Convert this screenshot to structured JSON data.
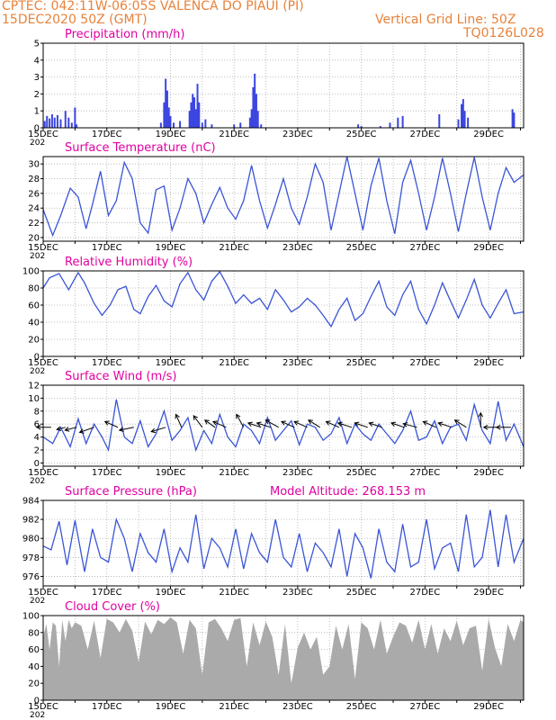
{
  "header": {
    "line1": "CPTEC:   042:11W-06:05S   VALENCA DO PIAUI (PI)",
    "line2_left": "15DEC2020 50Z (GMT)",
    "line2_right": "Vertical Grid Line: 50Z",
    "line3_right": "TQ0126L028"
  },
  "colors": {
    "title": "#e000a0",
    "header": "#e8823a",
    "line": "#3b55d6",
    "bar": "#3b45e0",
    "cloud": "#aaaaaa",
    "grid": "#b0b0b0"
  },
  "x_ticks": [
    "15DEC",
    "17DEC",
    "19DEC",
    "21DEC",
    "23DEC",
    "25DEC",
    "27DEC",
    "29DEC"
  ],
  "year_stub": "202",
  "chart_data": [
    {
      "type": "bar",
      "title": "Precipitation (mm/h)",
      "x_range": [
        0,
        15.1
      ],
      "ylim": [
        0,
        5
      ],
      "yticks": [
        "0",
        "1",
        "2",
        "3",
        "4",
        "5"
      ],
      "bars": [
        [
          0.05,
          0.4
        ],
        [
          0.12,
          0.7
        ],
        [
          0.2,
          0.55
        ],
        [
          0.28,
          0.8
        ],
        [
          0.36,
          0.6
        ],
        [
          0.45,
          0.75
        ],
        [
          0.55,
          0.5
        ],
        [
          0.7,
          1.0
        ],
        [
          0.8,
          0.6
        ],
        [
          0.9,
          0.3
        ],
        [
          1.0,
          1.2
        ],
        [
          1.05,
          0.2
        ],
        [
          3.7,
          0.3
        ],
        [
          3.8,
          1.5
        ],
        [
          3.85,
          2.9
        ],
        [
          3.9,
          2.2
        ],
        [
          3.95,
          1.2
        ],
        [
          4.0,
          0.7
        ],
        [
          4.1,
          0.3
        ],
        [
          4.3,
          0.4
        ],
        [
          4.6,
          1.0
        ],
        [
          4.65,
          1.5
        ],
        [
          4.7,
          2.0
        ],
        [
          4.75,
          1.8
        ],
        [
          4.8,
          1.1
        ],
        [
          4.85,
          2.6
        ],
        [
          4.9,
          1.5
        ],
        [
          5.0,
          0.3
        ],
        [
          5.1,
          0.5
        ],
        [
          5.3,
          0.2
        ],
        [
          6.0,
          0.2
        ],
        [
          6.2,
          0.3
        ],
        [
          6.5,
          0.6
        ],
        [
          6.55,
          1.1
        ],
        [
          6.6,
          2.4
        ],
        [
          6.65,
          3.2
        ],
        [
          6.7,
          2.0
        ],
        [
          6.75,
          1.0
        ],
        [
          6.85,
          0.2
        ],
        [
          9.9,
          0.2
        ],
        [
          10.0,
          0.1
        ],
        [
          10.6,
          0.1
        ],
        [
          10.9,
          0.3
        ],
        [
          11.15,
          0.6
        ],
        [
          11.3,
          0.7
        ],
        [
          12.45,
          0.8
        ],
        [
          13.05,
          0.5
        ],
        [
          13.15,
          1.4
        ],
        [
          13.2,
          1.7
        ],
        [
          13.25,
          1.0
        ],
        [
          13.35,
          0.6
        ],
        [
          14.75,
          1.1
        ],
        [
          14.8,
          0.9
        ]
      ]
    },
    {
      "type": "line",
      "title": "Surface Temperature (nC)",
      "x_range": [
        0,
        15.1
      ],
      "ylim": [
        19.5,
        31
      ],
      "yticks": [
        "20",
        "22",
        "24",
        "26",
        "28",
        "30"
      ],
      "x": [
        0,
        0.3,
        0.55,
        0.85,
        1.1,
        1.35,
        1.55,
        1.8,
        2.05,
        2.3,
        2.55,
        2.8,
        3.05,
        3.3,
        3.55,
        3.8,
        4.05,
        4.3,
        4.55,
        4.8,
        5.05,
        5.3,
        5.55,
        5.8,
        6.05,
        6.3,
        6.55,
        6.8,
        7.05,
        7.3,
        7.55,
        7.8,
        8.05,
        8.3,
        8.55,
        8.8,
        9.05,
        9.3,
        9.55,
        9.8,
        10.05,
        10.3,
        10.55,
        10.8,
        11.05,
        11.3,
        11.55,
        11.8,
        12.05,
        12.3,
        12.55,
        12.8,
        13.05,
        13.3,
        13.55,
        13.8,
        14.05,
        14.3,
        14.55,
        14.8,
        15.1
      ],
      "y": [
        23.8,
        20.3,
        23.0,
        26.7,
        25.5,
        21.2,
        24.5,
        29.0,
        23.0,
        25.0,
        30.2,
        28.0,
        22.0,
        20.6,
        26.5,
        27.0,
        21.0,
        24.0,
        28.0,
        26.0,
        22.0,
        24.5,
        26.8,
        24.0,
        22.5,
        25.0,
        29.8,
        25.0,
        21.3,
        24.5,
        28.0,
        24.0,
        21.8,
        25.5,
        30.0,
        27.5,
        21.0,
        26.0,
        31.0,
        26.0,
        21.0,
        27.0,
        30.8,
        25.0,
        20.5,
        27.5,
        30.5,
        26.0,
        21.0,
        25.5,
        30.8,
        26.0,
        20.8,
        26.0,
        30.9,
        25.5,
        21.0,
        26.0,
        29.5,
        27.5,
        28.5
      ]
    },
    {
      "type": "line",
      "title": "Relative Humidity (%)",
      "x_range": [
        0,
        15.1
      ],
      "ylim": [
        0,
        100
      ],
      "yticks": [
        "0",
        "20",
        "40",
        "60",
        "80",
        "100"
      ],
      "x": [
        0,
        0.2,
        0.5,
        0.8,
        1.1,
        1.3,
        1.6,
        1.85,
        2.1,
        2.35,
        2.6,
        2.85,
        3.05,
        3.3,
        3.55,
        3.8,
        4.05,
        4.3,
        4.55,
        4.8,
        5.05,
        5.3,
        5.55,
        5.8,
        6.05,
        6.3,
        6.55,
        6.8,
        7.05,
        7.3,
        7.55,
        7.8,
        8.05,
        8.3,
        8.55,
        8.8,
        9.05,
        9.3,
        9.55,
        9.8,
        10.05,
        10.3,
        10.55,
        10.8,
        11.05,
        11.3,
        11.55,
        11.8,
        12.05,
        12.3,
        12.55,
        12.8,
        13.05,
        13.3,
        13.55,
        13.8,
        14.05,
        14.3,
        14.55,
        14.8,
        15.1
      ],
      "y": [
        80,
        92,
        97,
        78,
        98,
        86,
        62,
        48,
        60,
        78,
        82,
        55,
        50,
        70,
        83,
        65,
        58,
        85,
        98,
        78,
        66,
        88,
        99,
        82,
        62,
        72,
        62,
        68,
        55,
        78,
        66,
        52,
        58,
        68,
        60,
        48,
        35,
        55,
        68,
        42,
        50,
        70,
        88,
        58,
        48,
        72,
        88,
        55,
        38,
        60,
        86,
        65,
        45,
        66,
        90,
        60,
        45,
        62,
        78,
        50,
        52
      ]
    },
    {
      "type": "line",
      "title": "Surface Wind (m/s)",
      "x_range": [
        0,
        15.1
      ],
      "ylim": [
        -0.5,
        12
      ],
      "yticks": [
        "0",
        "2",
        "4",
        "6",
        "8",
        "10",
        "12"
      ],
      "x": [
        0,
        0.3,
        0.55,
        0.85,
        1.1,
        1.35,
        1.6,
        1.85,
        2.05,
        2.3,
        2.55,
        2.8,
        3.05,
        3.3,
        3.55,
        3.8,
        4.05,
        4.3,
        4.55,
        4.8,
        5.05,
        5.3,
        5.55,
        5.8,
        6.05,
        6.3,
        6.55,
        6.8,
        7.05,
        7.3,
        7.55,
        7.8,
        8.05,
        8.3,
        8.55,
        8.8,
        9.05,
        9.3,
        9.55,
        9.8,
        10.05,
        10.3,
        10.55,
        10.8,
        11.05,
        11.3,
        11.55,
        11.8,
        12.05,
        12.3,
        12.55,
        12.8,
        13.05,
        13.3,
        13.55,
        13.8,
        14.05,
        14.3,
        14.55,
        14.8,
        15.1
      ],
      "y": [
        4.0,
        3.0,
        5.5,
        2.5,
        6.8,
        3.0,
        6.0,
        4.0,
        2.0,
        9.8,
        4.0,
        3.0,
        6.5,
        2.5,
        4.5,
        8.0,
        3.5,
        5.0,
        7.0,
        2.0,
        5.0,
        3.0,
        7.5,
        4.0,
        2.5,
        6.0,
        5.0,
        3.0,
        7.0,
        3.5,
        5.0,
        6.5,
        2.8,
        6.0,
        5.5,
        3.5,
        4.5,
        7.0,
        3.0,
        6.0,
        4.5,
        3.5,
        6.0,
        4.5,
        3.0,
        5.0,
        8.0,
        3.5,
        4.0,
        6.5,
        3.0,
        5.5,
        6.0,
        3.5,
        9.0,
        5.0,
        3.0,
        9.5,
        3.5,
        6.0,
        2.5
      ],
      "arrows": [
        [
          0.25,
          -1,
          0
        ],
        [
          0.7,
          -0.6,
          0.15
        ],
        [
          1.05,
          -0.8,
          0.2
        ],
        [
          1.6,
          -1,
          0.35
        ],
        [
          2.35,
          -0.9,
          -0.4
        ],
        [
          2.85,
          -1,
          0.2
        ],
        [
          3.85,
          -1,
          0.3
        ],
        [
          4.35,
          -0.4,
          -0.9
        ],
        [
          5.0,
          -0.6,
          -0.8
        ],
        [
          5.4,
          -0.7,
          -0.5
        ],
        [
          5.75,
          -0.9,
          -0.4
        ],
        [
          6.3,
          -0.5,
          -0.9
        ],
        [
          6.85,
          -0.9,
          -0.3
        ],
        [
          7.15,
          -0.95,
          -0.3
        ],
        [
          7.4,
          -0.9,
          -0.5
        ],
        [
          7.9,
          -0.9,
          -0.4
        ],
        [
          8.3,
          -0.9,
          -0.4
        ],
        [
          8.7,
          -0.8,
          -0.5
        ],
        [
          9.3,
          -0.9,
          -0.4
        ],
        [
          9.7,
          -0.95,
          -0.3
        ],
        [
          10.2,
          -0.9,
          -0.3
        ],
        [
          10.65,
          -0.9,
          -0.3
        ],
        [
          11.35,
          -0.9,
          -0.3
        ],
        [
          11.75,
          -0.95,
          -0.25
        ],
        [
          12.35,
          -0.9,
          -0.4
        ],
        [
          12.85,
          -0.95,
          -0.3
        ],
        [
          13.3,
          -0.8,
          -0.5
        ],
        [
          13.75,
          0,
          -1
        ],
        [
          14.3,
          -1,
          0
        ],
        [
          14.7,
          -1,
          0
        ]
      ]
    },
    {
      "type": "line",
      "title": "Surface Pressure (hPa)",
      "annotation": "Model Altitude: 268.153 m",
      "x_range": [
        0,
        15.1
      ],
      "ylim": [
        975,
        984
      ],
      "yticks": [
        "976",
        "978",
        "980",
        "982",
        "984"
      ],
      "x": [
        0,
        0.25,
        0.5,
        0.75,
        1.0,
        1.3,
        1.55,
        1.8,
        2.05,
        2.3,
        2.55,
        2.8,
        3.05,
        3.3,
        3.55,
        3.8,
        4.05,
        4.3,
        4.55,
        4.8,
        5.05,
        5.3,
        5.55,
        5.8,
        6.05,
        6.3,
        6.55,
        6.8,
        7.05,
        7.3,
        7.55,
        7.8,
        8.05,
        8.3,
        8.55,
        8.8,
        9.05,
        9.3,
        9.55,
        9.8,
        10.05,
        10.3,
        10.55,
        10.8,
        11.05,
        11.3,
        11.55,
        11.8,
        12.05,
        12.3,
        12.55,
        12.8,
        13.05,
        13.3,
        13.55,
        13.8,
        14.05,
        14.3,
        14.55,
        14.8,
        15.1
      ],
      "y": [
        979.2,
        978.8,
        981.8,
        977.2,
        981.9,
        976.5,
        981.0,
        978.0,
        977.5,
        982.0,
        980.0,
        976.5,
        980.5,
        978.5,
        977.5,
        981.0,
        976.5,
        979.0,
        977.5,
        982.5,
        976.8,
        980.0,
        979.0,
        977.0,
        981.0,
        976.8,
        980.5,
        978.5,
        977.5,
        982.0,
        978.0,
        977.0,
        980.5,
        976.5,
        979.5,
        978.5,
        977.0,
        981.0,
        976.0,
        980.5,
        979.0,
        975.8,
        981.0,
        977.5,
        976.5,
        981.5,
        977.0,
        977.5,
        982.0,
        976.8,
        979.0,
        979.5,
        976.5,
        982.5,
        977.0,
        978.0,
        983.0,
        977.0,
        982.5,
        977.5,
        980.0
      ]
    },
    {
      "type": "area",
      "title": "Cloud Cover (%)",
      "x_range": [
        0,
        15.1
      ],
      "ylim": [
        0,
        100
      ],
      "yticks": [
        "0",
        "20",
        "40",
        "60",
        "80",
        "100"
      ],
      "x": [
        0,
        0.1,
        0.2,
        0.3,
        0.4,
        0.5,
        0.6,
        0.7,
        0.8,
        0.9,
        1.0,
        1.2,
        1.4,
        1.6,
        1.8,
        2.0,
        2.2,
        2.4,
        2.6,
        2.8,
        3.0,
        3.2,
        3.4,
        3.6,
        3.8,
        4.0,
        4.2,
        4.4,
        4.6,
        4.8,
        5.0,
        5.2,
        5.4,
        5.6,
        5.8,
        6.0,
        6.2,
        6.4,
        6.6,
        6.8,
        7.0,
        7.2,
        7.4,
        7.6,
        7.8,
        8.0,
        8.2,
        8.4,
        8.6,
        8.8,
        9.0,
        9.2,
        9.4,
        9.6,
        9.8,
        10.0,
        10.2,
        10.4,
        10.6,
        10.8,
        11.0,
        11.2,
        11.4,
        11.6,
        11.8,
        12.0,
        12.2,
        12.4,
        12.6,
        12.8,
        13.0,
        13.2,
        13.4,
        13.6,
        13.8,
        14.0,
        14.2,
        14.4,
        14.6,
        14.8,
        15.0,
        15.1
      ],
      "y": [
        75,
        90,
        60,
        92,
        88,
        40,
        95,
        70,
        95,
        85,
        92,
        88,
        60,
        94,
        50,
        96,
        92,
        80,
        96,
        82,
        45,
        93,
        78,
        95,
        90,
        98,
        92,
        55,
        95,
        85,
        30,
        92,
        96,
        85,
        70,
        95,
        97,
        40,
        92,
        65,
        93,
        75,
        30,
        90,
        20,
        62,
        80,
        60,
        75,
        30,
        40,
        88,
        60,
        90,
        25,
        92,
        85,
        60,
        95,
        55,
        75,
        92,
        88,
        68,
        95,
        60,
        90,
        55,
        85,
        70,
        94,
        65,
        85,
        88,
        35,
        96,
        62,
        40,
        90,
        70,
        95,
        92
      ]
    }
  ],
  "panel_extra": {
    "altitude": "Model Altitude: 268.153 m"
  }
}
